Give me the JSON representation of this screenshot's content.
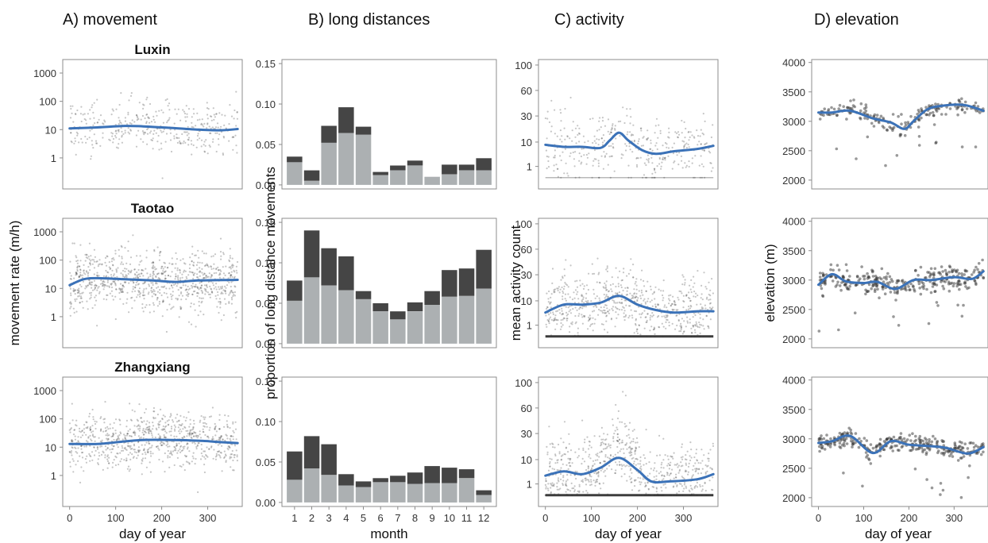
{
  "figure": {
    "column_titles": [
      "A) movement",
      "B) long distances",
      "C) activity",
      "D) elevation"
    ],
    "row_titles": [
      "Luxin",
      "Taotao",
      "Zhangxiang"
    ],
    "colors": {
      "frame": "#8c8c8c",
      "points": "#333333",
      "smooth": "#3b72b8",
      "bar_dark": "#454545",
      "bar_light": "#acb0b2"
    }
  },
  "chart_data": [
    {
      "id": "movement",
      "type": "scatter",
      "title": "A) movement",
      "xlabel": "day of year",
      "ylabel": "movement rate (m/h)",
      "yscale": "log",
      "xlim": [
        -15,
        375
      ],
      "ylim": [
        0.08,
        3000
      ],
      "xticks": [
        0,
        100,
        200,
        300
      ],
      "yticks": [
        1,
        10,
        100,
        1000
      ],
      "yticklabels": [
        "1",
        "10",
        "100",
        "1000"
      ],
      "grid": false,
      "series": [
        {
          "name": "Luxin",
          "smooth": {
            "x": [
              0,
              60,
              120,
              160,
              220,
              280,
              330,
              365
            ],
            "y": [
              11,
              12,
              13.5,
              13,
              11.5,
              10,
              9.5,
              10.5
            ]
          }
        },
        {
          "name": "Taotao",
          "smooth": {
            "x": [
              0,
              30,
              60,
              120,
              180,
              230,
              280,
              365
            ],
            "y": [
              13,
              21,
              23,
              21,
              19,
              17,
              19,
              20
            ]
          }
        },
        {
          "name": "Zhangxiang",
          "smooth": {
            "x": [
              0,
              60,
              120,
              160,
              220,
              280,
              330,
              365
            ],
            "y": [
              13,
              13,
              16,
              18,
              18,
              17,
              15,
              14
            ]
          }
        }
      ]
    },
    {
      "id": "long_distances",
      "type": "bar",
      "stacked": true,
      "title": "B) long distances",
      "xlabel": "month",
      "ylabel": "proportion of long distance movements",
      "categories": [
        "1",
        "2",
        "3",
        "4",
        "5",
        "6",
        "7",
        "8",
        "9",
        "10",
        "11",
        "12"
      ],
      "ylim": [
        -0.005,
        0.155
      ],
      "yticks": [
        0.0,
        0.05,
        0.1,
        0.15
      ],
      "yticklabels": [
        "0.00",
        "0.05",
        "0.10",
        "0.15"
      ],
      "grid": false,
      "series": [
        {
          "name": "Luxin",
          "lower": [
            0.028,
            0.005,
            0.052,
            0.064,
            0.062,
            0.012,
            0.018,
            0.024,
            0.01,
            0.013,
            0.018,
            0.018
          ],
          "total": [
            0.035,
            0.018,
            0.073,
            0.096,
            0.072,
            0.016,
            0.024,
            0.03,
            0.01,
            0.025,
            0.025,
            0.033
          ]
        },
        {
          "name": "Taotao",
          "lower": [
            0.053,
            0.082,
            0.072,
            0.066,
            0.055,
            0.04,
            0.03,
            0.04,
            0.048,
            0.058,
            0.059,
            0.068
          ],
          "total": [
            0.078,
            0.14,
            0.118,
            0.108,
            0.065,
            0.05,
            0.04,
            0.051,
            0.065,
            0.091,
            0.093,
            0.116
          ]
        },
        {
          "name": "Zhangxiang",
          "lower": [
            0.028,
            0.042,
            0.034,
            0.021,
            0.019,
            0.025,
            0.025,
            0.023,
            0.024,
            0.024,
            0.03,
            0.009
          ],
          "total": [
            0.063,
            0.082,
            0.072,
            0.035,
            0.026,
            0.03,
            0.033,
            0.037,
            0.045,
            0.043,
            0.041,
            0.015
          ]
        }
      ]
    },
    {
      "id": "activity",
      "type": "scatter",
      "title": "C) activity",
      "xlabel": "day of year",
      "ylabel": "mean activity count",
      "yscale": "sqrt",
      "xlim": [
        -15,
        375
      ],
      "ylim": [
        -1,
        110
      ],
      "xticks": [
        0,
        100,
        200,
        300
      ],
      "yticks": [
        1,
        10,
        30,
        60,
        100
      ],
      "yticklabels": [
        "1",
        "10",
        "30",
        "60",
        "100"
      ],
      "grid": false,
      "series": [
        {
          "name": "Luxin",
          "smooth": {
            "x": [
              0,
              40,
              80,
              120,
              140,
              160,
              180,
              210,
              240,
              280,
              330,
              365
            ],
            "y": [
              8.5,
              7.5,
              7.5,
              7,
              11,
              16,
              11,
              6,
              4.5,
              5.5,
              6.5,
              8
            ]
          }
        },
        {
          "name": "Taotao",
          "smooth": {
            "x": [
              0,
              40,
              80,
              120,
              160,
              200,
              240,
              280,
              330,
              365
            ],
            "y": [
              4.5,
              8,
              8,
              9,
              13,
              8,
              5.5,
              4.5,
              5,
              5
            ]
          }
        },
        {
          "name": "Zhangxiang",
          "smooth": {
            "x": [
              0,
              40,
              80,
              120,
              160,
              200,
              230,
              270,
              330,
              365
            ],
            "y": [
              3,
              4.5,
              3.5,
              6,
              11,
              5,
              1.5,
              1.5,
              2,
              3.5
            ]
          }
        }
      ]
    },
    {
      "id": "elevation",
      "type": "scatter",
      "title": "D) elevation",
      "xlabel": "day of year",
      "ylabel": "elevation (m)",
      "xlim": [
        -15,
        375
      ],
      "ylim": [
        1850,
        4050
      ],
      "xticks": [
        0,
        100,
        200,
        300
      ],
      "yticks": [
        2000,
        2500,
        3000,
        3500,
        4000
      ],
      "yticklabels": [
        "2000",
        "2500",
        "3000",
        "3500",
        "4000"
      ],
      "grid": false,
      "series": [
        {
          "name": "Luxin",
          "smooth": {
            "x": [
              0,
              30,
              70,
              120,
              160,
              190,
              210,
              240,
              270,
              320,
              365
            ],
            "y": [
              3150,
              3150,
              3180,
              3050,
              2980,
              2870,
              3000,
              3200,
              3260,
              3280,
              3180
            ]
          }
        },
        {
          "name": "Taotao",
          "smooth": {
            "x": [
              0,
              30,
              60,
              100,
              130,
              170,
              210,
              250,
              300,
              340,
              365
            ],
            "y": [
              2920,
              3100,
              2980,
              2950,
              2970,
              2850,
              3000,
              3000,
              3050,
              3020,
              3150
            ]
          }
        },
        {
          "name": "Zhangxiang",
          "smooth": {
            "x": [
              0,
              30,
              70,
              120,
              160,
              200,
              240,
              280,
              330,
              365
            ],
            "y": [
              2930,
              2960,
              3050,
              2760,
              2960,
              2900,
              2880,
              2850,
              2750,
              2860
            ]
          }
        }
      ]
    }
  ]
}
